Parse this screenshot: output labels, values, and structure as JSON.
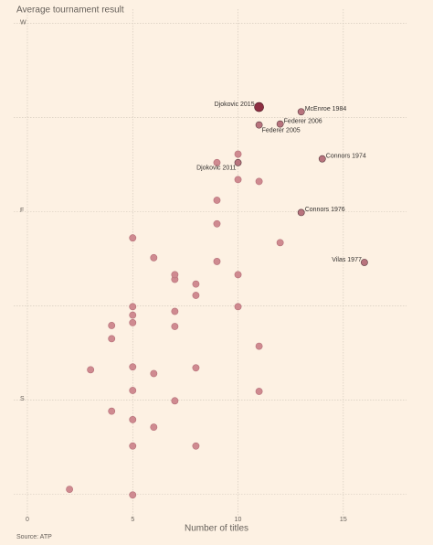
{
  "chart_data": {
    "type": "scatter",
    "title": "Average tournament result",
    "x_label": "Number of titles",
    "source": "Source: ATP",
    "x": [
      11,
      13,
      12,
      11,
      14,
      10,
      13,
      16,
      10,
      9,
      10,
      11,
      9,
      9,
      5,
      12,
      6,
      9,
      7,
      7,
      10,
      8,
      8,
      5,
      5,
      7,
      10,
      5,
      4,
      7,
      4,
      11,
      3,
      5,
      6,
      8,
      5,
      11,
      7,
      4,
      5,
      6,
      5,
      8,
      2,
      5
    ],
    "values": [
      5.11,
      5.06,
      4.93,
      4.92,
      4.56,
      4.52,
      3.99,
      3.46,
      4.61,
      4.52,
      4.34,
      4.32,
      4.12,
      3.87,
      3.72,
      3.67,
      3.51,
      3.47,
      3.33,
      3.28,
      3.33,
      3.23,
      3.11,
      2.99,
      2.9,
      2.94,
      2.99,
      2.82,
      2.79,
      2.78,
      2.65,
      2.57,
      2.32,
      2.35,
      2.28,
      2.34,
      2.1,
      2.09,
      1.99,
      1.88,
      1.79,
      1.71,
      1.51,
      1.51,
      1.05,
      0.99
    ],
    "labels": [
      "Djokovic 2015",
      "McEnroe 1984",
      "Federer 2006",
      "Federer 2005",
      "Connors 1974",
      "Djokovic 2011",
      "Connors 1976",
      "Vilas 1977",
      null,
      null,
      null,
      null,
      null,
      null,
      null,
      null,
      null,
      null,
      null,
      null,
      null,
      null,
      null,
      null,
      null,
      null,
      null,
      null,
      null,
      null,
      null,
      null,
      null,
      null,
      null,
      null,
      null,
      null,
      null,
      null,
      null,
      null,
      null,
      null,
      null,
      null
    ],
    "color": "#cf8a90",
    "labeled_color": "#b8737d",
    "highlight_color": "#8e2f42",
    "highlight": 0,
    "xlim": [
      -0.65,
      18
    ],
    "ylim": [
      0.75,
      6.15
    ],
    "xticks": [
      0,
      5,
      10,
      15
    ],
    "yticks": [
      {
        "value": 6,
        "label": "W"
      },
      {
        "value": 5,
        "label": null
      },
      {
        "value": 4,
        "label": "F"
      },
      {
        "value": 3,
        "label": null
      },
      {
        "value": 2,
        "label": "S"
      },
      {
        "value": 1,
        "label": null
      }
    ],
    "grid": true
  }
}
